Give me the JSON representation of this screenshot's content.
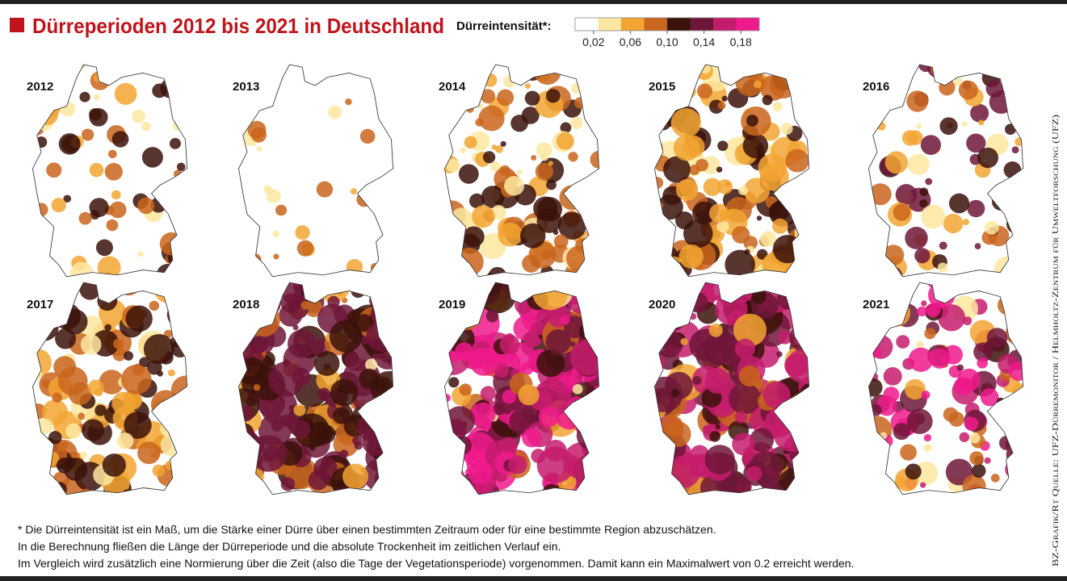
{
  "header": {
    "title": "Dürreperioden 2012 bis 2021 in Deutschland",
    "legend_label": "Dürreintensität*:",
    "legend": {
      "range": [
        0,
        0.2
      ],
      "colors": [
        "#ffffff",
        "#fde7a0",
        "#f2a531",
        "#c9651c",
        "#3b1209",
        "#6e1638",
        "#c41c6c",
        "#ef1a8c"
      ],
      "ticks": [
        {
          "value": 0.02,
          "label": "0,02"
        },
        {
          "value": 0.06,
          "label": "0,06"
        },
        {
          "value": 0.1,
          "label": "0,10"
        },
        {
          "value": 0.14,
          "label": "0,14"
        },
        {
          "value": 0.18,
          "label": "0,18"
        }
      ]
    }
  },
  "maps": [
    {
      "year": "2012"
    },
    {
      "year": "2013"
    },
    {
      "year": "2014"
    },
    {
      "year": "2015"
    },
    {
      "year": "2016"
    },
    {
      "year": "2017"
    },
    {
      "year": "2018"
    },
    {
      "year": "2019"
    },
    {
      "year": "2020"
    },
    {
      "year": "2021"
    }
  ],
  "footnote": [
    "* Die Dürreintensität  ist ein Maß, um die Stärke einer Dürre über einen bestimmten Zeitraum oder für eine bestimmte Region abzuschätzen.",
    "In die Berechnung fließen die Länge der Dürreperiode und die absolute Trockenheit im zeitlichen Verlauf ein.",
    "Im Vergleich wird zusätzlich eine Normierung über die Zeit (also die Tage der Vegetationsperiode) vorgenommen. Damit kann ein Maximalwert von 0.2 erreicht werden."
  ],
  "source": "BZ-Grafik/Rt Quelle: UFZ-Dürremonitor / Helmholtz-Zentrum für Umweltforschung (UFZ)"
}
